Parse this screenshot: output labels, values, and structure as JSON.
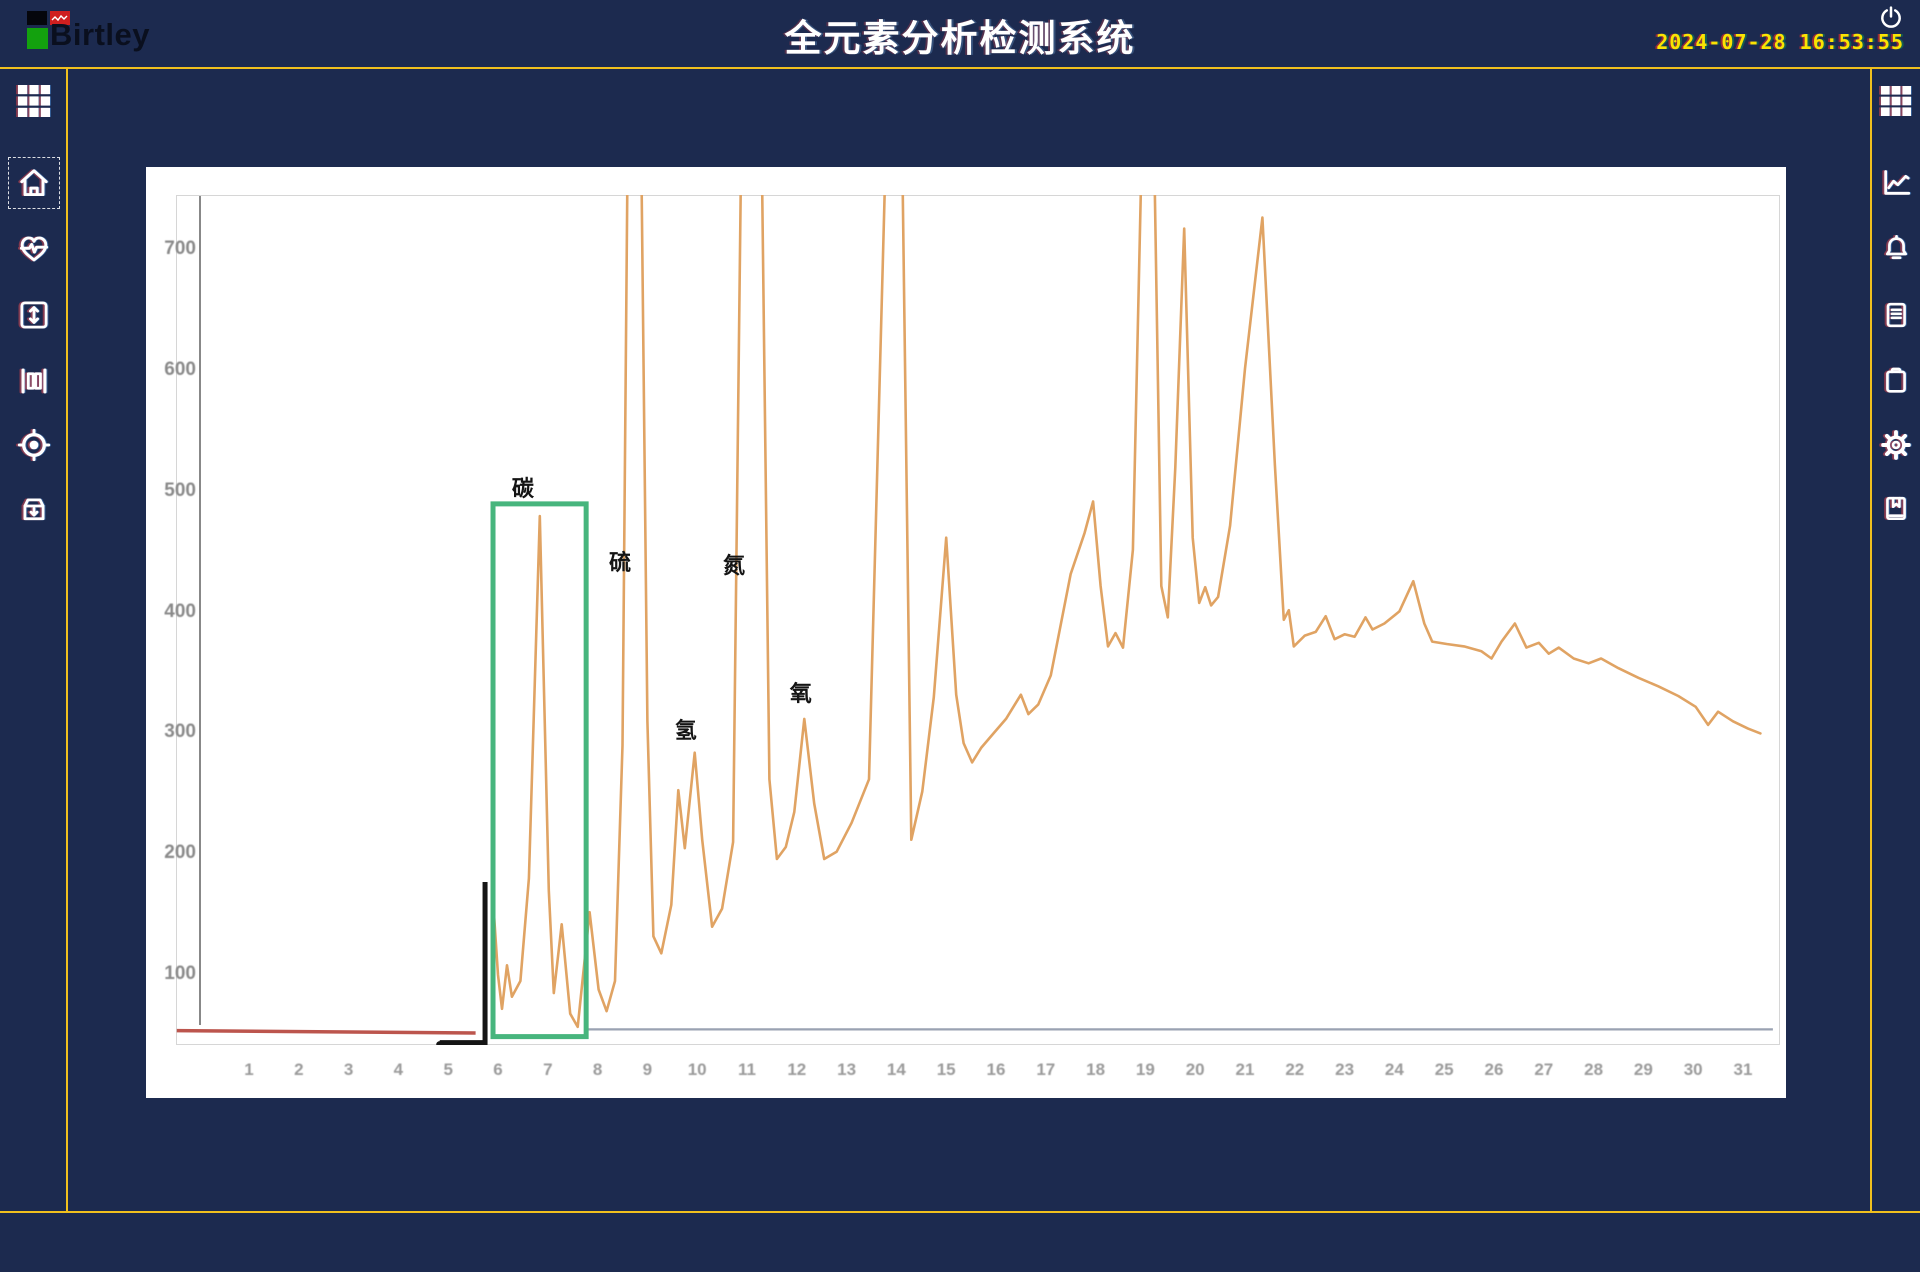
{
  "header": {
    "brand": "Birtley",
    "title": "全元素分析检测系统",
    "datetime": "2024-07-28  16:53:55"
  },
  "left_sidebar": {
    "items": [
      {
        "name": "apps",
        "icon": "grid-icon",
        "selected": false
      },
      {
        "name": "home",
        "icon": "home-icon",
        "selected": true
      },
      {
        "name": "monitor",
        "icon": "heartbeat-icon",
        "selected": false
      },
      {
        "name": "range",
        "icon": "expand-vertical-icon",
        "selected": false
      },
      {
        "name": "columns",
        "icon": "columns-icon",
        "selected": false
      },
      {
        "name": "calibrate",
        "icon": "target-icon",
        "selected": false
      },
      {
        "name": "archive",
        "icon": "archive-down-icon",
        "selected": false
      }
    ]
  },
  "right_sidebar": {
    "items": [
      {
        "name": "apps",
        "icon": "grid-icon"
      },
      {
        "name": "curves",
        "icon": "line-chart-icon"
      },
      {
        "name": "alarms",
        "icon": "bell-icon"
      },
      {
        "name": "records",
        "icon": "document-icon"
      },
      {
        "name": "tasks",
        "icon": "clipboard-icon"
      },
      {
        "name": "settings",
        "icon": "gear-icon"
      },
      {
        "name": "manual",
        "icon": "book-icon"
      }
    ]
  },
  "chart_data": {
    "type": "line",
    "title": "",
    "xlabel": "",
    "ylabel": "",
    "xlim": [
      0,
      32
    ],
    "ylim": [
      0,
      760
    ],
    "grid": false,
    "xticks": [
      1,
      2,
      3,
      4,
      5,
      6,
      7,
      8,
      9,
      10,
      11,
      12,
      13,
      14,
      15,
      16,
      17,
      18,
      19,
      20,
      21,
      22,
      23,
      24,
      25,
      26,
      27,
      28,
      29,
      30,
      31
    ],
    "yticks": [
      700,
      600,
      500,
      400,
      300,
      200,
      100
    ],
    "offscale_value": 770,
    "series": [
      {
        "name": "element-analysis-trace",
        "color": "#e0a363",
        "points": [
          [
            5.88,
            175
          ],
          [
            6.0,
            100
          ],
          [
            6.08,
            72
          ],
          [
            6.18,
            108
          ],
          [
            6.28,
            82
          ],
          [
            6.45,
            95
          ],
          [
            6.62,
            180
          ],
          [
            6.84,
            480
          ],
          [
            7.02,
            170
          ],
          [
            7.12,
            85
          ],
          [
            7.28,
            142
          ],
          [
            7.45,
            68
          ],
          [
            7.6,
            57
          ],
          [
            7.84,
            152
          ],
          [
            8.02,
            88
          ],
          [
            8.18,
            70
          ],
          [
            8.35,
            95
          ],
          [
            8.5,
            290
          ],
          [
            8.6,
            770
          ],
          [
            8.88,
            770
          ],
          [
            9.0,
            310
          ],
          [
            9.12,
            132
          ],
          [
            9.28,
            118
          ],
          [
            9.48,
            158
          ],
          [
            9.62,
            253
          ],
          [
            9.75,
            205
          ],
          [
            9.95,
            284
          ],
          [
            10.1,
            212
          ],
          [
            10.3,
            140
          ],
          [
            10.5,
            155
          ],
          [
            10.72,
            210
          ],
          [
            10.88,
            770
          ],
          [
            11.3,
            770
          ],
          [
            11.45,
            262
          ],
          [
            11.6,
            196
          ],
          [
            11.78,
            206
          ],
          [
            11.95,
            235
          ],
          [
            12.15,
            312
          ],
          [
            12.35,
            242
          ],
          [
            12.55,
            196
          ],
          [
            12.8,
            202
          ],
          [
            13.1,
            226
          ],
          [
            13.45,
            262
          ],
          [
            13.78,
            770
          ],
          [
            14.12,
            770
          ],
          [
            14.3,
            212
          ],
          [
            14.52,
            252
          ],
          [
            14.75,
            330
          ],
          [
            15.0,
            462
          ],
          [
            15.2,
            332
          ],
          [
            15.35,
            292
          ],
          [
            15.52,
            276
          ],
          [
            15.7,
            288
          ],
          [
            15.95,
            300
          ],
          [
            16.2,
            312
          ],
          [
            16.5,
            332
          ],
          [
            16.65,
            316
          ],
          [
            16.85,
            324
          ],
          [
            17.1,
            348
          ],
          [
            17.5,
            432
          ],
          [
            17.78,
            466
          ],
          [
            17.95,
            492
          ],
          [
            18.1,
            422
          ],
          [
            18.25,
            372
          ],
          [
            18.4,
            383
          ],
          [
            18.55,
            371
          ],
          [
            18.75,
            452
          ],
          [
            18.92,
            770
          ],
          [
            19.18,
            770
          ],
          [
            19.32,
            422
          ],
          [
            19.45,
            396
          ],
          [
            19.6,
            520
          ],
          [
            19.78,
            718
          ],
          [
            19.95,
            462
          ],
          [
            20.08,
            408
          ],
          [
            20.2,
            421
          ],
          [
            20.32,
            406
          ],
          [
            20.46,
            413
          ],
          [
            20.7,
            472
          ],
          [
            21.0,
            602
          ],
          [
            21.35,
            727
          ],
          [
            21.6,
            522
          ],
          [
            21.78,
            394
          ],
          [
            21.88,
            402
          ],
          [
            21.98,
            372
          ],
          [
            22.2,
            381
          ],
          [
            22.42,
            384
          ],
          [
            22.62,
            397
          ],
          [
            22.8,
            378
          ],
          [
            23.0,
            382
          ],
          [
            23.2,
            380
          ],
          [
            23.42,
            396
          ],
          [
            23.56,
            386
          ],
          [
            23.8,
            391
          ],
          [
            24.1,
            401
          ],
          [
            24.38,
            426
          ],
          [
            24.6,
            391
          ],
          [
            24.76,
            376
          ],
          [
            25.05,
            374
          ],
          [
            25.4,
            372
          ],
          [
            25.75,
            368
          ],
          [
            25.95,
            362
          ],
          [
            26.15,
            376
          ],
          [
            26.42,
            391
          ],
          [
            26.65,
            371
          ],
          [
            26.9,
            375
          ],
          [
            27.1,
            366
          ],
          [
            27.3,
            371
          ],
          [
            27.6,
            362
          ],
          [
            27.9,
            358
          ],
          [
            28.15,
            362
          ],
          [
            28.5,
            354
          ],
          [
            28.9,
            346
          ],
          [
            29.3,
            339
          ],
          [
            29.7,
            331
          ],
          [
            30.05,
            322
          ],
          [
            30.3,
            307
          ],
          [
            30.5,
            318
          ],
          [
            30.8,
            310
          ],
          [
            31.1,
            304
          ],
          [
            31.35,
            300
          ]
        ]
      }
    ],
    "baseline_red": {
      "color": "#b5423a",
      "points": [
        [
          -0.45,
          54
        ],
        [
          5.55,
          52
        ]
      ]
    },
    "baseline_gray": {
      "color": "#9aa2b2",
      "points": [
        [
          7.8,
          55
        ],
        [
          31.6,
          55
        ]
      ]
    },
    "injection_bracket": {
      "color": "#151515",
      "t_left": 4.83,
      "t_right": 5.74,
      "v_top": 177,
      "v_bottom": 44
    },
    "highlight_box": {
      "label": "碳",
      "color": "#47b57d",
      "t1": 5.9,
      "t2": 7.77,
      "v1": 49,
      "v2": 490
    },
    "annotations": [
      {
        "name": "carbon",
        "text": "碳",
        "t": 6.5,
        "v": 504
      },
      {
        "name": "sulfur",
        "text": "硫",
        "t": 8.45,
        "v": 443
      },
      {
        "name": "hydrogen",
        "text": "氢",
        "t": 9.77,
        "v": 304
      },
      {
        "name": "nitrogen",
        "text": "氮",
        "t": 10.74,
        "v": 440
      },
      {
        "name": "oxygen",
        "text": "氧",
        "t": 12.08,
        "v": 334
      }
    ]
  }
}
